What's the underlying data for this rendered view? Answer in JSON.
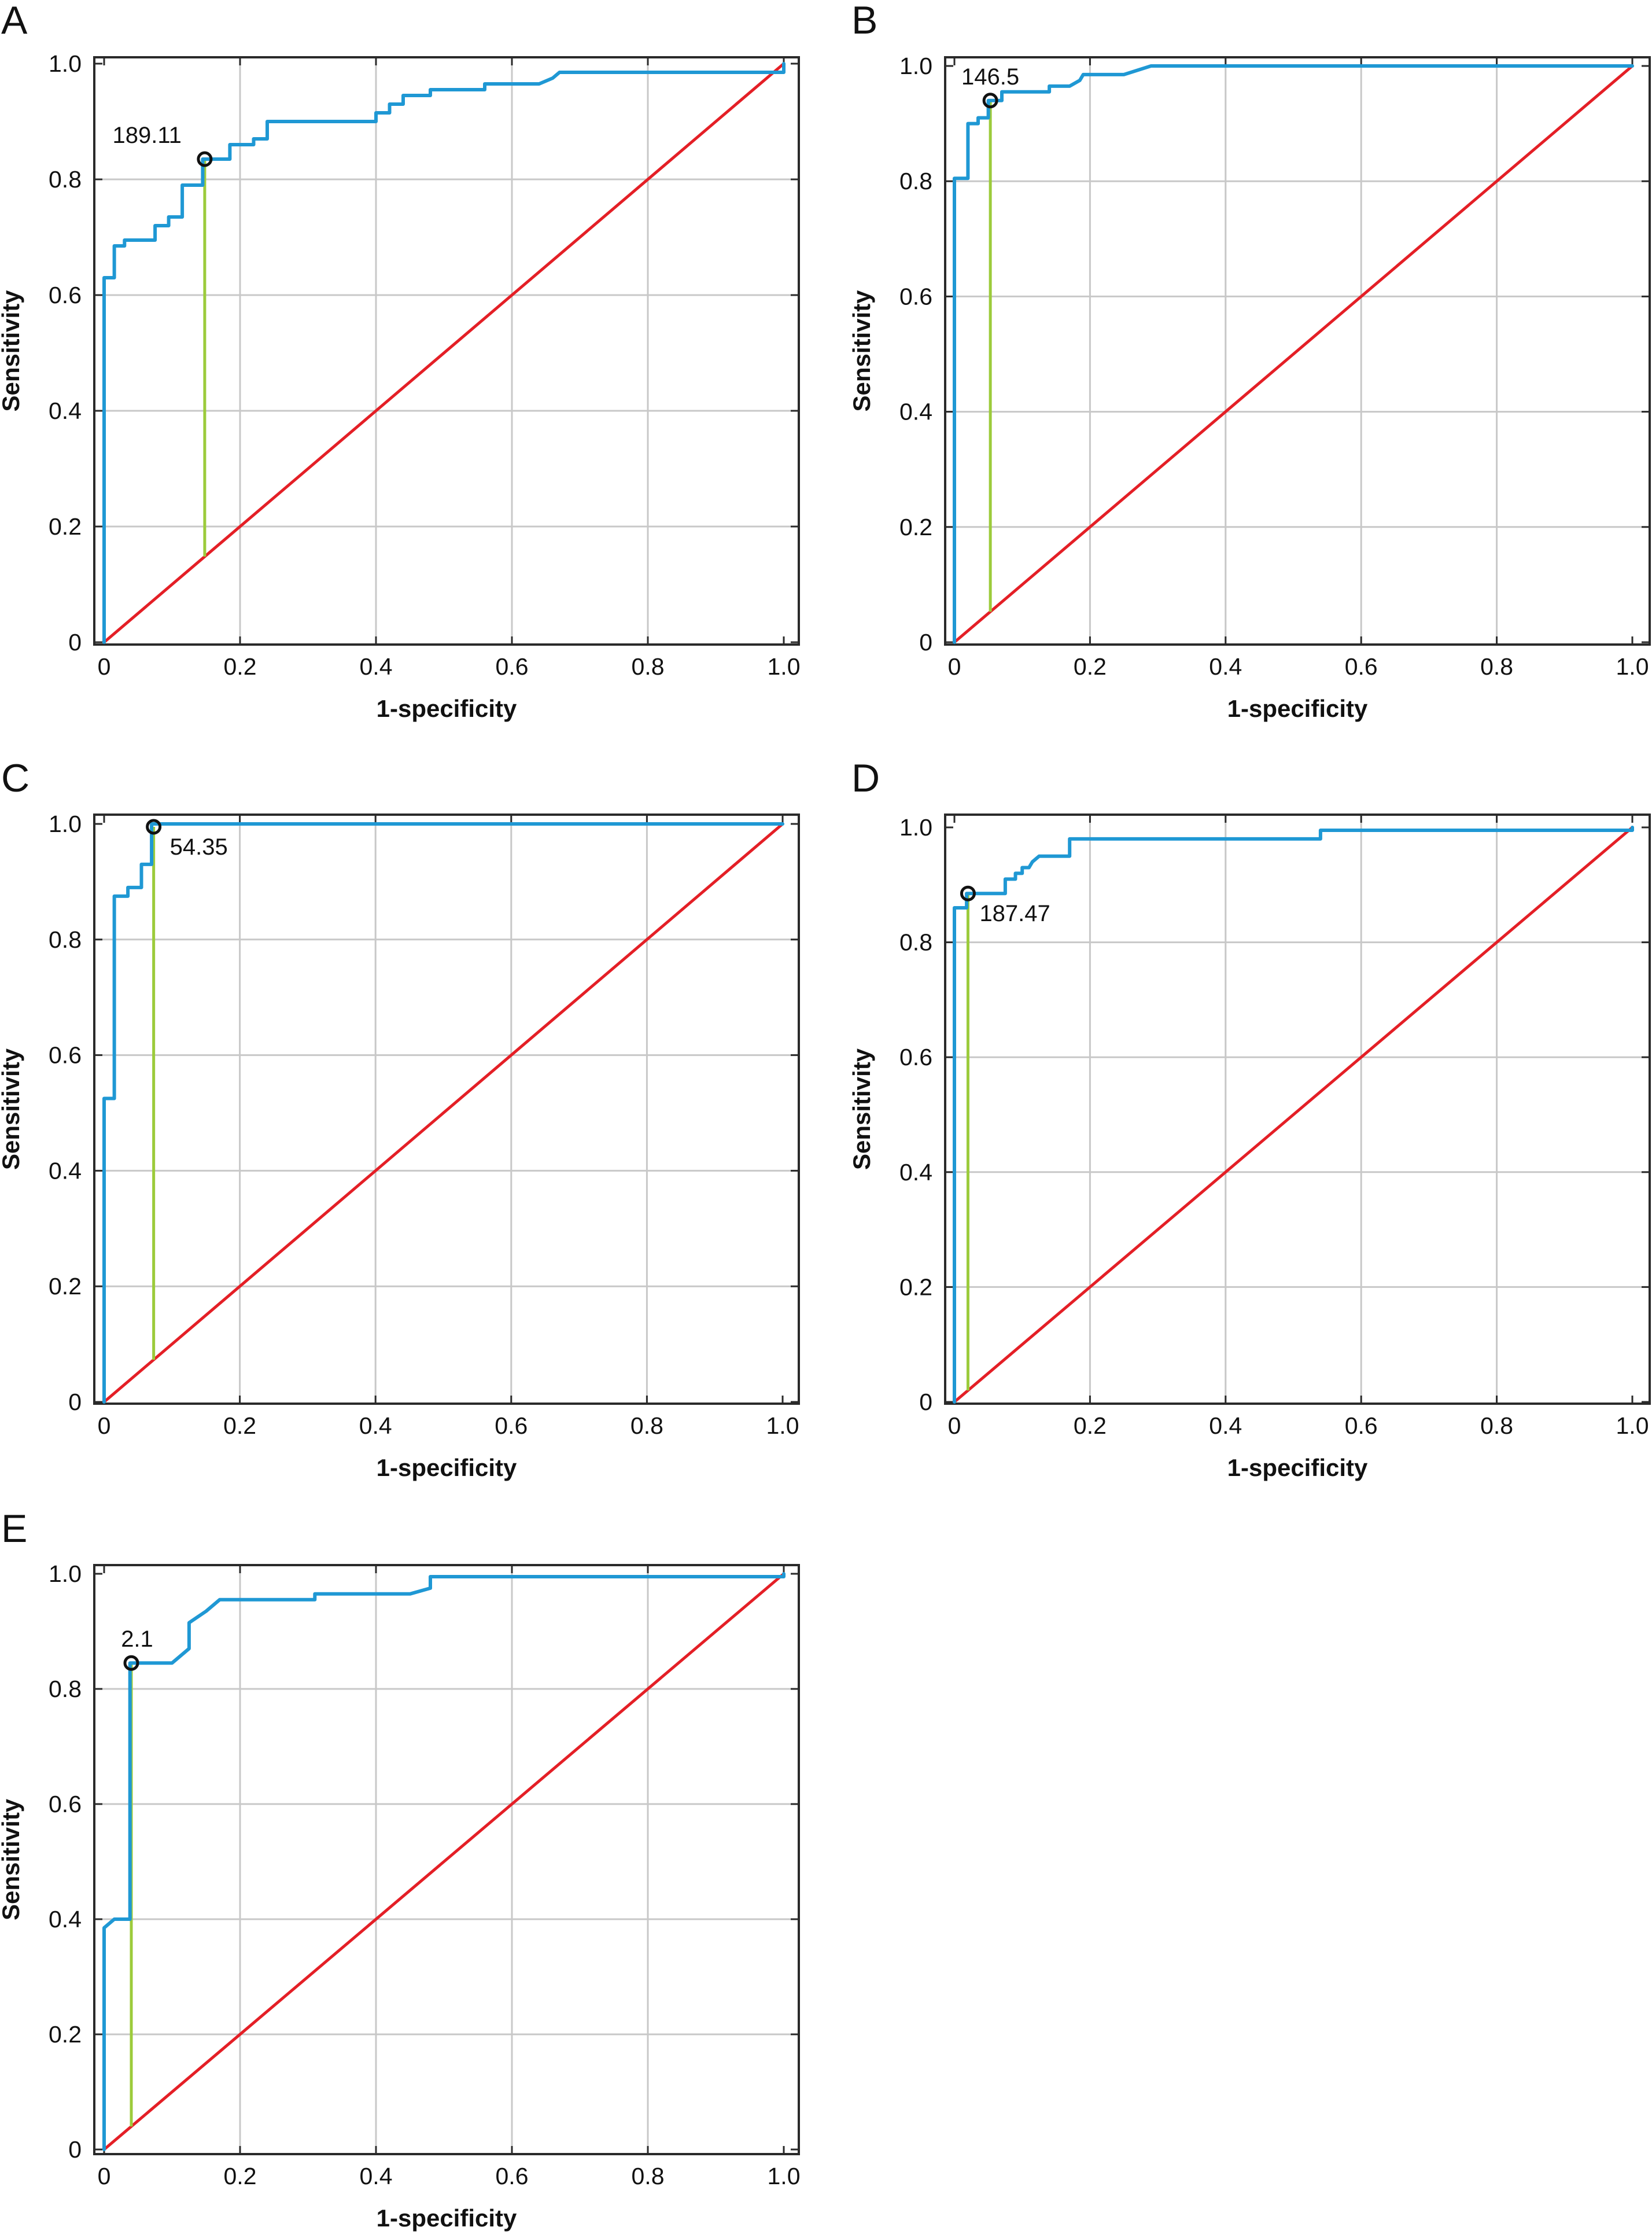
{
  "colors": {
    "roc_curve": "#1f98d4",
    "reference_line": "#e41f26",
    "cutoff_line": "#9ccb3b",
    "grid": "#c8c8c8",
    "axis": "#2a2a2a"
  },
  "chart_data": [
    {
      "panel": "A",
      "type": "line",
      "xlabel": "1-specificity",
      "ylabel": "Sensitivity",
      "xlim": [
        0,
        1
      ],
      "ylim": [
        0,
        1
      ],
      "grid": true,
      "xticks": [
        "0",
        "0.2",
        "0.4",
        "0.6",
        "0.8",
        "1.0"
      ],
      "yticks": [
        "0",
        "0.2",
        "0.4",
        "0.6",
        "0.8",
        "1.0"
      ],
      "roc_curve": [
        [
          0,
          0
        ],
        [
          0,
          0.63
        ],
        [
          0.015,
          0.63
        ],
        [
          0.015,
          0.685
        ],
        [
          0.03,
          0.685
        ],
        [
          0.03,
          0.695
        ],
        [
          0.075,
          0.695
        ],
        [
          0.075,
          0.72
        ],
        [
          0.095,
          0.72
        ],
        [
          0.095,
          0.735
        ],
        [
          0.115,
          0.735
        ],
        [
          0.115,
          0.79
        ],
        [
          0.145,
          0.79
        ],
        [
          0.145,
          0.835
        ],
        [
          0.185,
          0.835
        ],
        [
          0.185,
          0.86
        ],
        [
          0.22,
          0.86
        ],
        [
          0.22,
          0.87
        ],
        [
          0.24,
          0.87
        ],
        [
          0.24,
          0.9
        ],
        [
          0.4,
          0.9
        ],
        [
          0.4,
          0.915
        ],
        [
          0.42,
          0.915
        ],
        [
          0.42,
          0.93
        ],
        [
          0.44,
          0.93
        ],
        [
          0.44,
          0.945
        ],
        [
          0.48,
          0.945
        ],
        [
          0.48,
          0.955
        ],
        [
          0.56,
          0.955
        ],
        [
          0.56,
          0.965
        ],
        [
          0.64,
          0.965
        ],
        [
          0.66,
          0.975
        ],
        [
          0.67,
          0.985
        ],
        [
          1,
          0.985
        ],
        [
          1,
          1
        ]
      ],
      "reference_line": [
        [
          0,
          0
        ],
        [
          1,
          1
        ]
      ],
      "cutoff": {
        "label": "189.11",
        "x": 0.148,
        "y": 0.835
      }
    },
    {
      "panel": "B",
      "type": "line",
      "xlabel": "1-specificity",
      "ylabel": "Sensitivity",
      "xlim": [
        0,
        1
      ],
      "ylim": [
        0,
        1
      ],
      "grid": true,
      "xticks": [
        "0",
        "0.2",
        "0.4",
        "0.6",
        "0.8",
        "1.0"
      ],
      "yticks": [
        "0",
        "0.2",
        "0.4",
        "0.6",
        "0.8",
        "1.0"
      ],
      "roc_curve": [
        [
          0,
          0
        ],
        [
          0,
          0.805
        ],
        [
          0.02,
          0.805
        ],
        [
          0.02,
          0.9
        ],
        [
          0.035,
          0.9
        ],
        [
          0.035,
          0.91
        ],
        [
          0.05,
          0.91
        ],
        [
          0.05,
          0.94
        ],
        [
          0.07,
          0.94
        ],
        [
          0.07,
          0.955
        ],
        [
          0.14,
          0.955
        ],
        [
          0.14,
          0.965
        ],
        [
          0.17,
          0.965
        ],
        [
          0.185,
          0.975
        ],
        [
          0.19,
          0.985
        ],
        [
          0.25,
          0.985
        ],
        [
          0.29,
          1
        ],
        [
          1,
          1
        ]
      ],
      "reference_line": [
        [
          0,
          0
        ],
        [
          1,
          1
        ]
      ],
      "cutoff": {
        "label": "146.5",
        "x": 0.053,
        "y": 0.94
      }
    },
    {
      "panel": "C",
      "type": "line",
      "xlabel": "1-specificity",
      "ylabel": "Sensitivity",
      "xlim": [
        0,
        1
      ],
      "ylim": [
        0,
        1
      ],
      "grid": true,
      "xticks": [
        "0",
        "0.2",
        "0.4",
        "0.6",
        "0.8",
        "1.0"
      ],
      "yticks": [
        "0",
        "0.2",
        "0.4",
        "0.6",
        "0.8",
        "1.0"
      ],
      "roc_curve": [
        [
          0,
          0
        ],
        [
          0,
          0.525
        ],
        [
          0.015,
          0.525
        ],
        [
          0.015,
          0.875
        ],
        [
          0.035,
          0.875
        ],
        [
          0.035,
          0.89
        ],
        [
          0.055,
          0.89
        ],
        [
          0.055,
          0.93
        ],
        [
          0.07,
          0.93
        ],
        [
          0.07,
          1
        ],
        [
          1,
          1
        ]
      ],
      "reference_line": [
        [
          0,
          0
        ],
        [
          1,
          1
        ]
      ],
      "cutoff": {
        "label": "54.35",
        "x": 0.073,
        "y": 0.995
      }
    },
    {
      "panel": "D",
      "type": "line",
      "xlabel": "1-specificity",
      "ylabel": "Sensitivity",
      "xlim": [
        0,
        1
      ],
      "ylim": [
        0,
        1
      ],
      "grid": true,
      "xticks": [
        "0",
        "0.2",
        "0.4",
        "0.6",
        "0.8",
        "1.0"
      ],
      "yticks": [
        "0",
        "0.2",
        "0.4",
        "0.6",
        "0.8",
        "1.0"
      ],
      "roc_curve": [
        [
          0,
          0
        ],
        [
          0,
          0.86
        ],
        [
          0.018,
          0.86
        ],
        [
          0.018,
          0.885
        ],
        [
          0.075,
          0.885
        ],
        [
          0.075,
          0.91
        ],
        [
          0.09,
          0.91
        ],
        [
          0.09,
          0.92
        ],
        [
          0.1,
          0.92
        ],
        [
          0.1,
          0.93
        ],
        [
          0.11,
          0.93
        ],
        [
          0.115,
          0.94
        ],
        [
          0.125,
          0.95
        ],
        [
          0.17,
          0.95
        ],
        [
          0.17,
          0.98
        ],
        [
          0.54,
          0.98
        ],
        [
          0.54,
          0.995
        ],
        [
          1,
          0.995
        ],
        [
          1,
          1
        ]
      ],
      "reference_line": [
        [
          0,
          0
        ],
        [
          1,
          1
        ]
      ],
      "cutoff": {
        "label": "187.47",
        "x": 0.02,
        "y": 0.885
      }
    },
    {
      "panel": "E",
      "type": "line",
      "xlabel": "1-specificity",
      "ylabel": "Sensitivity",
      "xlim": [
        0,
        1
      ],
      "ylim": [
        0,
        1
      ],
      "grid": true,
      "xticks": [
        "0",
        "0.2",
        "0.4",
        "0.6",
        "0.8",
        "1.0"
      ],
      "yticks": [
        "0",
        "0.2",
        "0.4",
        "0.6",
        "0.8",
        "1.0"
      ],
      "roc_curve": [
        [
          0,
          0
        ],
        [
          0,
          0.385
        ],
        [
          0.015,
          0.4
        ],
        [
          0.038,
          0.4
        ],
        [
          0.038,
          0.845
        ],
        [
          0.1,
          0.845
        ],
        [
          0.125,
          0.87
        ],
        [
          0.125,
          0.915
        ],
        [
          0.15,
          0.935
        ],
        [
          0.17,
          0.955
        ],
        [
          0.31,
          0.955
        ],
        [
          0.31,
          0.965
        ],
        [
          0.45,
          0.965
        ],
        [
          0.48,
          0.975
        ],
        [
          0.48,
          0.995
        ],
        [
          1,
          0.995
        ],
        [
          1,
          1
        ]
      ],
      "reference_line": [
        [
          0,
          0
        ],
        [
          1,
          1
        ]
      ],
      "cutoff": {
        "label": "2.1",
        "x": 0.04,
        "y": 0.845
      }
    }
  ]
}
